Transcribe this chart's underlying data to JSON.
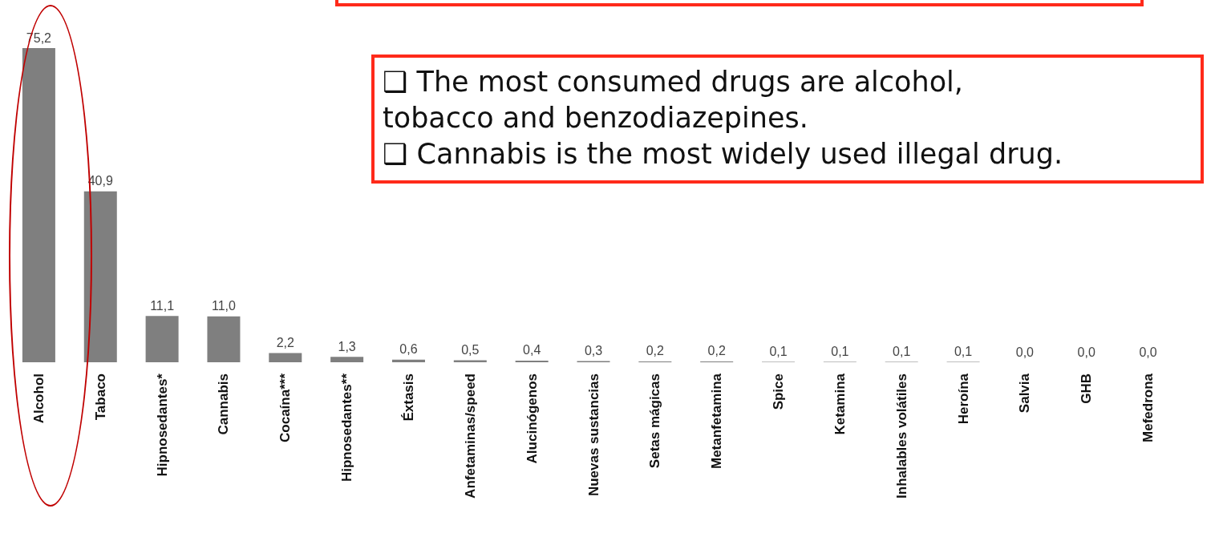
{
  "chart_data": {
    "type": "bar",
    "categories": [
      "Alcohol",
      "Tabaco",
      "Hipnosedantes*",
      "Cannabis",
      "Cocaína***",
      "Hipnosedantes**",
      "Éxtasis",
      "Anfetaminas/speed",
      "Alucinógenos",
      "Nuevas sustancias",
      "Setas mágicas",
      "Metanfetamina",
      "Spice",
      "Ketamina",
      "Inhalables volátiles",
      "Heroína",
      "Salvia",
      "GHB",
      "Mefedrona"
    ],
    "values": [
      75.2,
      40.9,
      11.1,
      11.0,
      2.2,
      1.3,
      0.6,
      0.5,
      0.4,
      0.3,
      0.2,
      0.2,
      0.1,
      0.1,
      0.1,
      0.1,
      0.0,
      0.0,
      0.0
    ],
    "value_labels": [
      "75,2",
      "40,9",
      "11,1",
      "11,0",
      "2,2",
      "1,3",
      "0,6",
      "0,5",
      "0,4",
      "0,3",
      "0,2",
      "0,2",
      "0,1",
      "0,1",
      "0,1",
      "0,1",
      "0,0",
      "0,0",
      "0,0"
    ],
    "color": "#7f7f7f",
    "annotations": [
      "❑ The most consumed drugs are alcohol, tobacco and benzodiazepines.",
      "❑ Cannabis is the most widely used illegal drug."
    ],
    "orientation": "vertical"
  }
}
